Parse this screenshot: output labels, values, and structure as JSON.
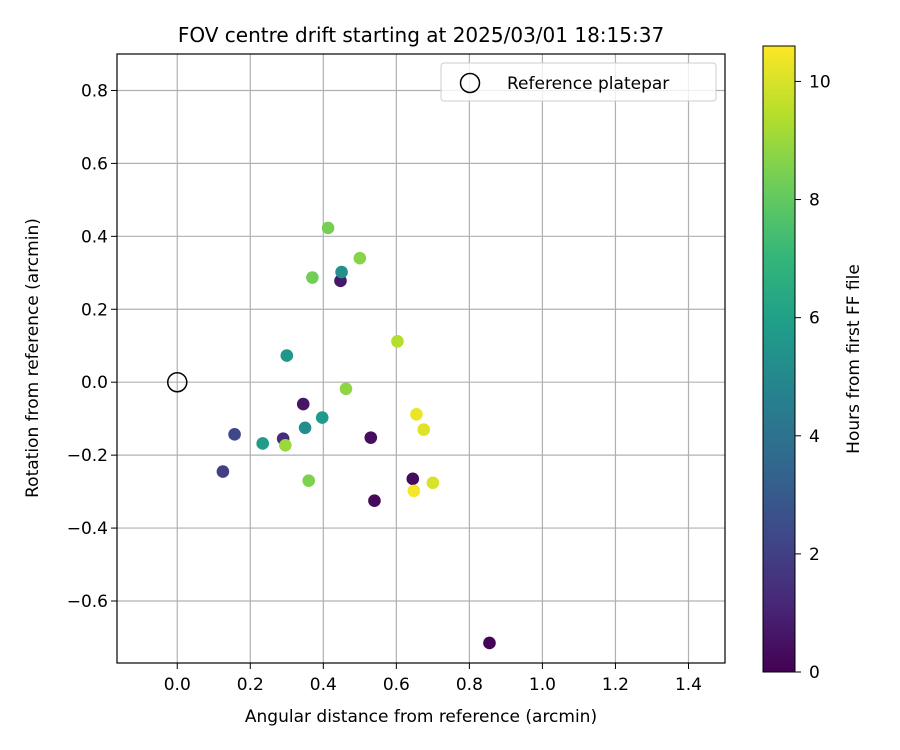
{
  "chart_data": {
    "type": "scatter",
    "title": "FOV centre drift starting at 2025/03/01 18:15:37",
    "xlabel": "Angular distance from reference (arcmin)",
    "ylabel": "Rotation from reference (arcmin)",
    "xlim": [
      -0.165,
      1.5
    ],
    "ylim": [
      -0.77,
      0.9
    ],
    "xticks": [
      0.0,
      0.2,
      0.4,
      0.6,
      0.8,
      1.0,
      1.2,
      1.4
    ],
    "xtick_labels": [
      "0.0",
      "0.2",
      "0.4",
      "0.6",
      "0.8",
      "1.0",
      "1.2",
      "1.4"
    ],
    "yticks": [
      -0.6,
      -0.4,
      -0.2,
      0.0,
      0.2,
      0.4,
      0.6,
      0.8
    ],
    "ytick_labels": [
      "−0.6",
      "−0.4",
      "−0.2",
      "0.0",
      "0.2",
      "0.4",
      "0.6",
      "0.8"
    ],
    "grid": true,
    "legend": {
      "placement": "top-right",
      "entries": [
        {
          "label": "Reference platepar",
          "marker": "open-circle"
        }
      ]
    },
    "reference_point": {
      "x": 0.0,
      "y": 0.0
    },
    "colorbar": {
      "label": "Hours from first FF file",
      "range": [
        0,
        10.6
      ],
      "ticks": [
        0,
        2,
        4,
        6,
        8,
        10
      ],
      "tick_labels": [
        "0",
        "2",
        "4",
        "6",
        "8",
        "10"
      ],
      "colormap": "viridis"
    },
    "points": [
      {
        "x": 0.855,
        "y": -0.715,
        "hours": 0.1
      },
      {
        "x": 0.54,
        "y": -0.325,
        "hours": 0.2
      },
      {
        "x": 0.645,
        "y": -0.265,
        "hours": 0.3
      },
      {
        "x": 0.53,
        "y": -0.152,
        "hours": 0.4
      },
      {
        "x": 0.345,
        "y": -0.06,
        "hours": 0.6
      },
      {
        "x": 0.447,
        "y": 0.278,
        "hours": 0.7
      },
      {
        "x": 0.29,
        "y": -0.155,
        "hours": 1.3
      },
      {
        "x": 0.125,
        "y": -0.245,
        "hours": 2.0
      },
      {
        "x": 0.157,
        "y": -0.143,
        "hours": 2.3
      },
      {
        "x": 0.35,
        "y": -0.125,
        "hours": 5.2
      },
      {
        "x": 0.45,
        "y": 0.302,
        "hours": 5.3
      },
      {
        "x": 0.3,
        "y": 0.073,
        "hours": 5.6
      },
      {
        "x": 0.397,
        "y": -0.097,
        "hours": 5.7
      },
      {
        "x": 0.234,
        "y": -0.168,
        "hours": 5.8
      },
      {
        "x": 0.37,
        "y": 0.287,
        "hours": 8.3
      },
      {
        "x": 0.413,
        "y": 0.423,
        "hours": 8.4
      },
      {
        "x": 0.36,
        "y": -0.27,
        "hours": 8.5
      },
      {
        "x": 0.5,
        "y": 0.34,
        "hours": 8.7
      },
      {
        "x": 0.462,
        "y": -0.018,
        "hours": 8.8
      },
      {
        "x": 0.296,
        "y": -0.173,
        "hours": 9.0
      },
      {
        "x": 0.603,
        "y": 0.112,
        "hours": 9.4
      },
      {
        "x": 0.7,
        "y": -0.276,
        "hours": 10.0
      },
      {
        "x": 0.675,
        "y": -0.13,
        "hours": 10.1
      },
      {
        "x": 0.655,
        "y": -0.088,
        "hours": 10.3
      },
      {
        "x": 0.648,
        "y": -0.298,
        "hours": 10.5
      }
    ]
  }
}
